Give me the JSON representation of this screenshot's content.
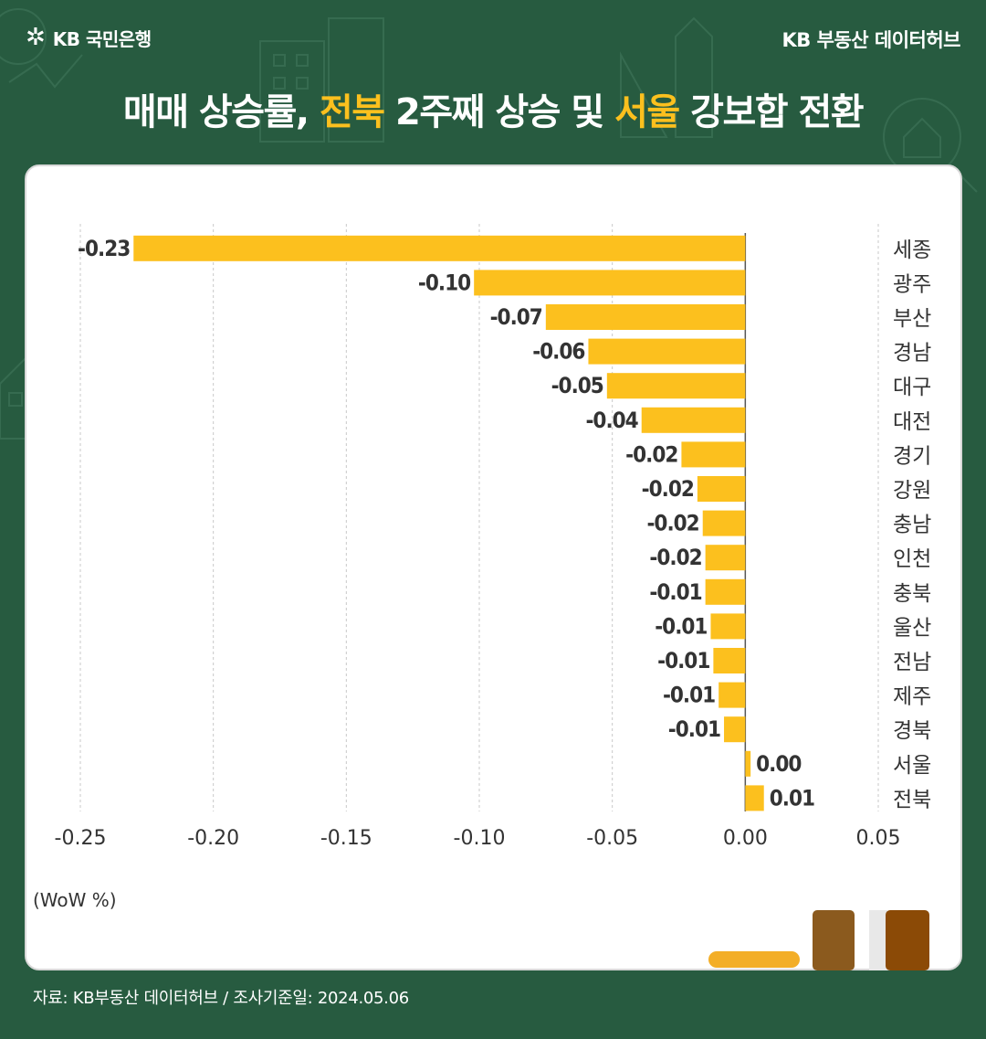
{
  "header": {
    "logo_text": "KB 국민은행",
    "hub_title": "KB 부동산  데이터허브"
  },
  "title": {
    "part1": "매매 상승률, ",
    "part2": "전북",
    "part3": " 2주째 상승 및 ",
    "part4": "서울",
    "part5": " 강보합 전환"
  },
  "unit_label": "(WoW %)",
  "source": "자료: KB부동산 데이터허브 / 조사기준일: 2024.05.06",
  "colors": {
    "background": "#275b40",
    "bar": "#fcc01e",
    "accent": "#fcc01e"
  },
  "chart_data": {
    "type": "bar",
    "orientation": "horizontal",
    "categories": [
      "세종",
      "광주",
      "부산",
      "경남",
      "대구",
      "대전",
      "경기",
      "강원",
      "충남",
      "인천",
      "충북",
      "울산",
      "전남",
      "제주",
      "경북",
      "서울",
      "전북"
    ],
    "values": [
      -0.23,
      -0.102,
      -0.075,
      -0.059,
      -0.052,
      -0.039,
      -0.024,
      -0.018,
      -0.016,
      -0.015,
      -0.015,
      -0.013,
      -0.012,
      -0.01,
      -0.008,
      0.002,
      0.007
    ],
    "value_labels": [
      "-0.23",
      "-0.10",
      "-0.07",
      "-0.06",
      "-0.05",
      "-0.04",
      "-0.02",
      "-0.02",
      "-0.02",
      "-0.02",
      "-0.01",
      "-0.01",
      "-0.01",
      "-0.01",
      "-0.01",
      "0.00",
      "0.01"
    ],
    "xlim": [
      -0.25,
      0.05
    ],
    "xticks": [
      "-0.25",
      "-0.20",
      "-0.15",
      "-0.10",
      "-0.05",
      "0.00",
      "0.05"
    ],
    "xlabel": "(WoW %)",
    "grid": true
  }
}
